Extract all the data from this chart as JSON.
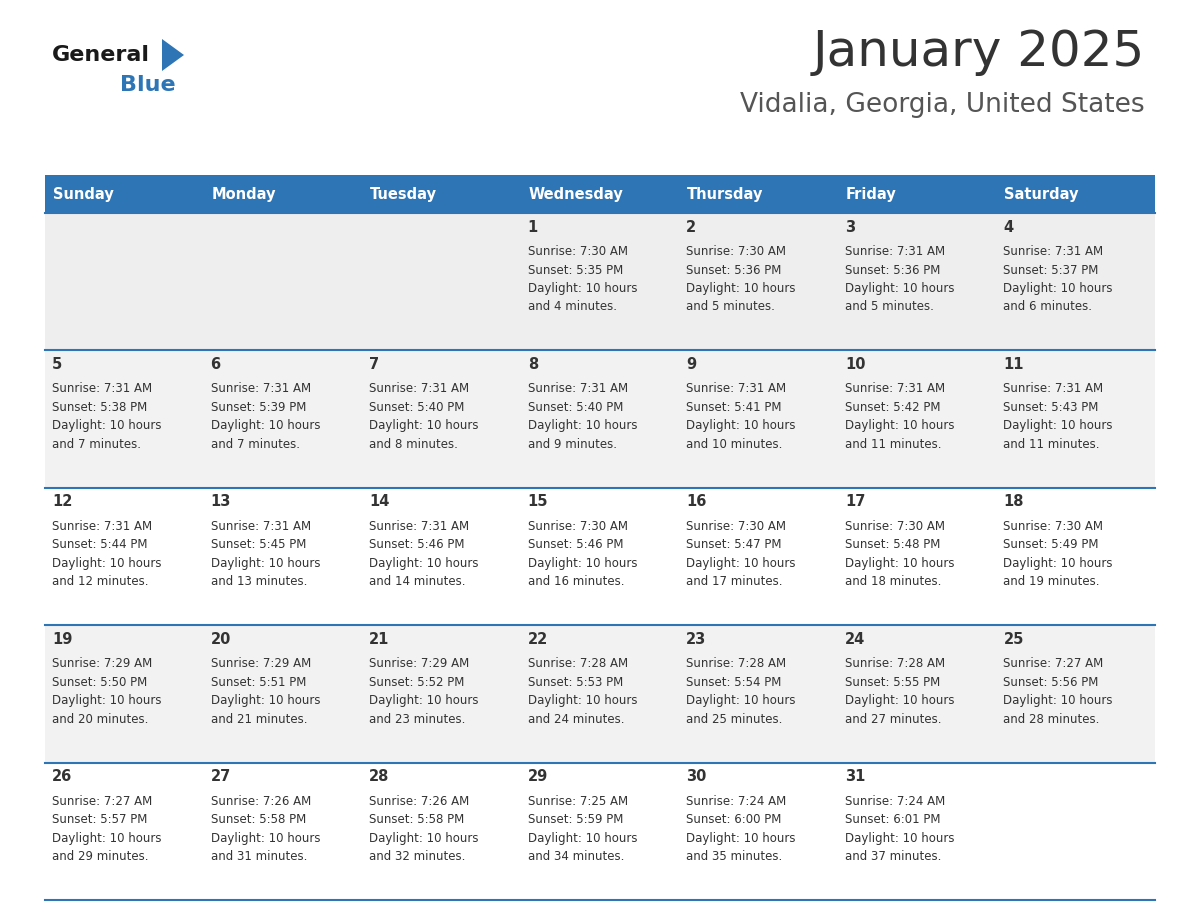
{
  "title": "January 2025",
  "subtitle": "Vidalia, Georgia, United States",
  "header_bg_color": "#2E75B6",
  "header_text_color": "#FFFFFF",
  "day_names": [
    "Sunday",
    "Monday",
    "Tuesday",
    "Wednesday",
    "Thursday",
    "Friday",
    "Saturday"
  ],
  "cell_bg_row0": "#EEEEEE",
  "cell_bg_row1": "#F2F2F2",
  "cell_bg_row2": "#FFFFFF",
  "cell_bg_row3": "#F2F2F2",
  "cell_bg_row4": "#FFFFFF",
  "cell_bg_row5": "#F2F2F2",
  "cell_border_color": "#2E75B6",
  "text_color": "#333333",
  "title_color": "#333333",
  "days": [
    {
      "day": null,
      "sunrise": null,
      "sunset": null,
      "daylight_hrs": null,
      "daylight_min": null
    },
    {
      "day": null,
      "sunrise": null,
      "sunset": null,
      "daylight_hrs": null,
      "daylight_min": null
    },
    {
      "day": null,
      "sunrise": null,
      "sunset": null,
      "daylight_hrs": null,
      "daylight_min": null
    },
    {
      "day": 1,
      "sunrise": "7:30 AM",
      "sunset": "5:35 PM",
      "daylight_hrs": "10 hours",
      "daylight_min": "and 4 minutes."
    },
    {
      "day": 2,
      "sunrise": "7:30 AM",
      "sunset": "5:36 PM",
      "daylight_hrs": "10 hours",
      "daylight_min": "and 5 minutes."
    },
    {
      "day": 3,
      "sunrise": "7:31 AM",
      "sunset": "5:36 PM",
      "daylight_hrs": "10 hours",
      "daylight_min": "and 5 minutes."
    },
    {
      "day": 4,
      "sunrise": "7:31 AM",
      "sunset": "5:37 PM",
      "daylight_hrs": "10 hours",
      "daylight_min": "and 6 minutes."
    },
    {
      "day": 5,
      "sunrise": "7:31 AM",
      "sunset": "5:38 PM",
      "daylight_hrs": "10 hours",
      "daylight_min": "and 7 minutes."
    },
    {
      "day": 6,
      "sunrise": "7:31 AM",
      "sunset": "5:39 PM",
      "daylight_hrs": "10 hours",
      "daylight_min": "and 7 minutes."
    },
    {
      "day": 7,
      "sunrise": "7:31 AM",
      "sunset": "5:40 PM",
      "daylight_hrs": "10 hours",
      "daylight_min": "and 8 minutes."
    },
    {
      "day": 8,
      "sunrise": "7:31 AM",
      "sunset": "5:40 PM",
      "daylight_hrs": "10 hours",
      "daylight_min": "and 9 minutes."
    },
    {
      "day": 9,
      "sunrise": "7:31 AM",
      "sunset": "5:41 PM",
      "daylight_hrs": "10 hours",
      "daylight_min": "and 10 minutes."
    },
    {
      "day": 10,
      "sunrise": "7:31 AM",
      "sunset": "5:42 PM",
      "daylight_hrs": "10 hours",
      "daylight_min": "and 11 minutes."
    },
    {
      "day": 11,
      "sunrise": "7:31 AM",
      "sunset": "5:43 PM",
      "daylight_hrs": "10 hours",
      "daylight_min": "and 11 minutes."
    },
    {
      "day": 12,
      "sunrise": "7:31 AM",
      "sunset": "5:44 PM",
      "daylight_hrs": "10 hours",
      "daylight_min": "and 12 minutes."
    },
    {
      "day": 13,
      "sunrise": "7:31 AM",
      "sunset": "5:45 PM",
      "daylight_hrs": "10 hours",
      "daylight_min": "and 13 minutes."
    },
    {
      "day": 14,
      "sunrise": "7:31 AM",
      "sunset": "5:46 PM",
      "daylight_hrs": "10 hours",
      "daylight_min": "and 14 minutes."
    },
    {
      "day": 15,
      "sunrise": "7:30 AM",
      "sunset": "5:46 PM",
      "daylight_hrs": "10 hours",
      "daylight_min": "and 16 minutes."
    },
    {
      "day": 16,
      "sunrise": "7:30 AM",
      "sunset": "5:47 PM",
      "daylight_hrs": "10 hours",
      "daylight_min": "and 17 minutes."
    },
    {
      "day": 17,
      "sunrise": "7:30 AM",
      "sunset": "5:48 PM",
      "daylight_hrs": "10 hours",
      "daylight_min": "and 18 minutes."
    },
    {
      "day": 18,
      "sunrise": "7:30 AM",
      "sunset": "5:49 PM",
      "daylight_hrs": "10 hours",
      "daylight_min": "and 19 minutes."
    },
    {
      "day": 19,
      "sunrise": "7:29 AM",
      "sunset": "5:50 PM",
      "daylight_hrs": "10 hours",
      "daylight_min": "and 20 minutes."
    },
    {
      "day": 20,
      "sunrise": "7:29 AM",
      "sunset": "5:51 PM",
      "daylight_hrs": "10 hours",
      "daylight_min": "and 21 minutes."
    },
    {
      "day": 21,
      "sunrise": "7:29 AM",
      "sunset": "5:52 PM",
      "daylight_hrs": "10 hours",
      "daylight_min": "and 23 minutes."
    },
    {
      "day": 22,
      "sunrise": "7:28 AM",
      "sunset": "5:53 PM",
      "daylight_hrs": "10 hours",
      "daylight_min": "and 24 minutes."
    },
    {
      "day": 23,
      "sunrise": "7:28 AM",
      "sunset": "5:54 PM",
      "daylight_hrs": "10 hours",
      "daylight_min": "and 25 minutes."
    },
    {
      "day": 24,
      "sunrise": "7:28 AM",
      "sunset": "5:55 PM",
      "daylight_hrs": "10 hours",
      "daylight_min": "and 27 minutes."
    },
    {
      "day": 25,
      "sunrise": "7:27 AM",
      "sunset": "5:56 PM",
      "daylight_hrs": "10 hours",
      "daylight_min": "and 28 minutes."
    },
    {
      "day": 26,
      "sunrise": "7:27 AM",
      "sunset": "5:57 PM",
      "daylight_hrs": "10 hours",
      "daylight_min": "and 29 minutes."
    },
    {
      "day": 27,
      "sunrise": "7:26 AM",
      "sunset": "5:58 PM",
      "daylight_hrs": "10 hours",
      "daylight_min": "and 31 minutes."
    },
    {
      "day": 28,
      "sunrise": "7:26 AM",
      "sunset": "5:58 PM",
      "daylight_hrs": "10 hours",
      "daylight_min": "and 32 minutes."
    },
    {
      "day": 29,
      "sunrise": "7:25 AM",
      "sunset": "5:59 PM",
      "daylight_hrs": "10 hours",
      "daylight_min": "and 34 minutes."
    },
    {
      "day": 30,
      "sunrise": "7:24 AM",
      "sunset": "6:00 PM",
      "daylight_hrs": "10 hours",
      "daylight_min": "and 35 minutes."
    },
    {
      "day": 31,
      "sunrise": "7:24 AM",
      "sunset": "6:01 PM",
      "daylight_hrs": "10 hours",
      "daylight_min": "and 37 minutes."
    },
    {
      "day": null,
      "sunrise": null,
      "sunset": null,
      "daylight_hrs": null,
      "daylight_min": null
    }
  ],
  "row_bg_colors": [
    "#EEEEEE",
    "#F2F2F2",
    "#FFFFFF",
    "#F2F2F2",
    "#FFFFFF",
    "#F2F2F2"
  ]
}
